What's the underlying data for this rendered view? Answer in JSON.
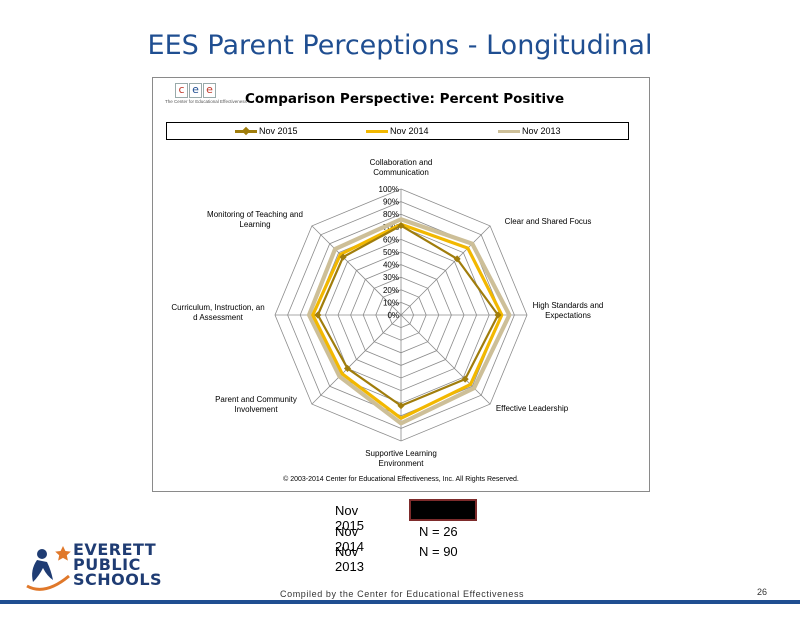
{
  "slide": {
    "title": "EES Parent Perceptions - Longitudinal",
    "footer_note": "Compiled by the Center for Educational Effectiveness",
    "page_number": "26"
  },
  "cee_logo": {
    "letters": [
      "c",
      "e",
      "e"
    ],
    "tagline": "The Center for Educational Effectiveness"
  },
  "chart_data": {
    "type": "radar",
    "title": "Comparison Perspective: Percent Positive",
    "categories": [
      "Collaboration and Communication",
      "Clear and Shared Focus",
      "High Standards and Expectations",
      "Effective Leadership",
      "Supportive Learning Environment",
      "Parent and Community Involvement",
      "Curriculum, Instruction, and Assessment",
      "Monitoring of Teaching and Learning"
    ],
    "ticks": [
      "0%",
      "10%",
      "20%",
      "30%",
      "40%",
      "50%",
      "60%",
      "70%",
      "80%",
      "90%",
      "100%"
    ],
    "rlim": [
      0,
      100
    ],
    "series": [
      {
        "name": "Nov 2015",
        "color": "#a07d0c",
        "values": [
          71,
          63,
          77,
          72,
          72,
          60,
          66,
          65
        ],
        "marker": "diamond"
      },
      {
        "name": "Nov 2014",
        "color": "#f2b800",
        "values": [
          72,
          75,
          80,
          78,
          82,
          66,
          70,
          68
        ],
        "marker": "none"
      },
      {
        "name": "Nov 2013",
        "color": "#cdbf98",
        "values": [
          76,
          80,
          86,
          82,
          86,
          69,
          73,
          74
        ],
        "marker": "none"
      }
    ],
    "legend_position": "top",
    "copyright": "© 2003-2014 Center for Educational Effectiveness, Inc. All Rights Reserved."
  },
  "respondents": [
    {
      "label": "Nov 2015",
      "value": "",
      "redacted": true
    },
    {
      "label": "Nov 2014",
      "value": "N = 26",
      "redacted": false
    },
    {
      "label": "Nov 2013",
      "value": "N = 90",
      "redacted": false
    }
  ],
  "district_logo": {
    "lines": [
      "EVERETT",
      "PUBLIC",
      "SCHOOLS"
    ]
  }
}
